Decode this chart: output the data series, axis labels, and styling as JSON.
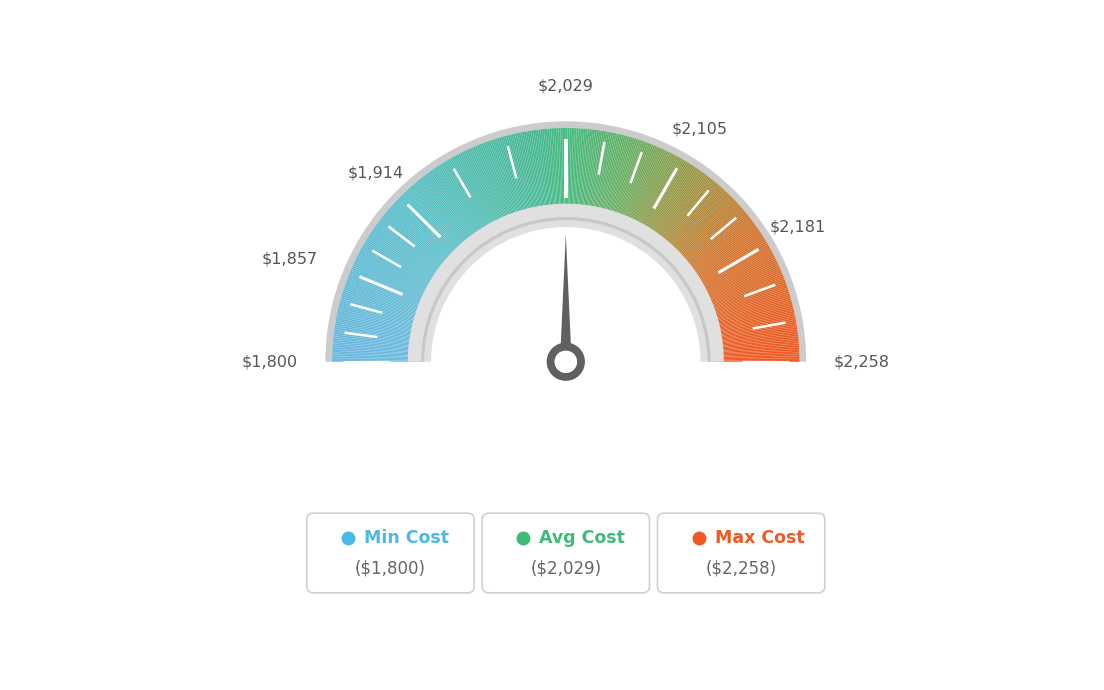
{
  "min_val": 1800,
  "avg_val": 2029,
  "max_val": 2258,
  "tick_labels": [
    "$1,800",
    "$1,857",
    "$1,914",
    "$2,029",
    "$2,105",
    "$2,181",
    "$2,258"
  ],
  "tick_values": [
    1800,
    1857,
    1914,
    2029,
    2105,
    2181,
    2258
  ],
  "legend_labels": [
    "Min Cost",
    "Avg Cost",
    "Max Cost"
  ],
  "legend_values": [
    "($1,800)",
    "($2,029)",
    "($2,258)"
  ],
  "legend_colors": [
    "#4ab8e8",
    "#3dba78",
    "#f05a22"
  ],
  "bg_color": "#ffffff",
  "color_stops": [
    [
      0.0,
      [
        0.42,
        0.72,
        0.88
      ]
    ],
    [
      0.25,
      [
        0.35,
        0.75,
        0.78
      ]
    ],
    [
      0.45,
      [
        0.28,
        0.72,
        0.58
      ]
    ],
    [
      0.5,
      [
        0.27,
        0.73,
        0.5
      ]
    ],
    [
      0.6,
      [
        0.42,
        0.68,
        0.38
      ]
    ],
    [
      0.7,
      [
        0.62,
        0.58,
        0.25
      ]
    ],
    [
      0.8,
      [
        0.82,
        0.46,
        0.18
      ]
    ],
    [
      1.0,
      [
        0.94,
        0.35,
        0.14
      ]
    ]
  ],
  "outer_r": 0.88,
  "inner_r": 0.54,
  "needle_color": "#606060",
  "needle_circle_color": "#606060"
}
